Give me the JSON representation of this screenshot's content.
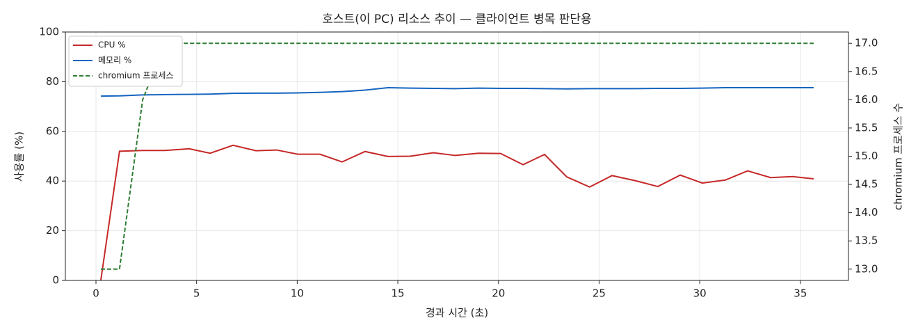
{
  "chart_data": {
    "type": "line",
    "title": "호스트(이 PC) 리소스 추이 — 클라이언트 병목 판단용",
    "x_label": "경과 시간 (초)",
    "y_label": "사용률 (%)",
    "y2_label": "chromium 프로세스 수",
    "x": [
      0.24,
      1.17,
      2.32,
      3.42,
      4.63,
      5.67,
      6.81,
      7.95,
      8.98,
      10.02,
      11.13,
      12.23,
      13.37,
      14.51,
      15.62,
      16.76,
      17.86,
      19.0,
      20.11,
      21.22,
      22.29,
      23.39,
      24.53,
      25.64,
      26.78,
      27.92,
      29.03,
      30.13,
      31.27,
      32.38,
      33.52,
      34.62,
      35.66
    ],
    "series": [
      {
        "name": "CPU %",
        "color": "#c62828",
        "values": [
          0,
          52,
          52.3,
          52.3,
          53,
          51.2,
          54.4,
          52.2,
          52.5,
          50.8,
          50.8,
          47.7,
          51.9,
          49.9,
          50,
          51.4,
          50.3,
          51.2,
          51.1,
          46.6,
          50.7,
          41.7,
          37.6,
          42.2,
          40.2,
          37.8,
          42.4,
          39.2,
          40.4,
          44.1,
          41.4,
          41.8,
          40.9
        ]
      },
      {
        "name": "메모리 %",
        "color": "#1565c0",
        "values": [
          74.2,
          74.3,
          74.7,
          74.8,
          74.9,
          75.0,
          75.3,
          75.4,
          75.4,
          75.5,
          75.7,
          76.0,
          76.6,
          77.6,
          77.4,
          77.3,
          77.2,
          77.4,
          77.3,
          77.3,
          77.2,
          77.1,
          77.2,
          77.2,
          77.2,
          77.3,
          77.3,
          77.4,
          77.6,
          77.6,
          77.6,
          77.6,
          77.6
        ]
      },
      {
        "name": "chromium 프로세스",
        "color": "#2e7d32",
        "linestyle": "dashed",
        "axis": "y2",
        "values": [
          13,
          13,
          16,
          17,
          17,
          17,
          17,
          17,
          17,
          17,
          17,
          17,
          17,
          17,
          17,
          17,
          17,
          17,
          17,
          17,
          17,
          17,
          17,
          17,
          17,
          17,
          17,
          17,
          17,
          17,
          17,
          17,
          17
        ]
      }
    ],
    "xlim": [
      -1.52,
      37.39
    ],
    "xticks": [
      0,
      5,
      10,
      15,
      20,
      25,
      30,
      35
    ],
    "ylim": [
      0,
      100
    ],
    "yticks": [
      0,
      20,
      40,
      60,
      80,
      100
    ],
    "y2lim": [
      12.8,
      17.2
    ],
    "y2ticks": [
      {
        "value": 13,
        "label": "13.0"
      },
      {
        "value": 13.5,
        "label": "13.5"
      },
      {
        "value": 14,
        "label": "14.0"
      },
      {
        "value": 14.5,
        "label": "14.5"
      },
      {
        "value": 15,
        "label": "15.0"
      },
      {
        "value": 15.5,
        "label": "15.5"
      },
      {
        "value": 16,
        "label": "16.0"
      },
      {
        "value": 16.5,
        "label": "16.5"
      },
      {
        "value": 17,
        "label": "17.0"
      }
    ],
    "grid": true,
    "legend": "upper left"
  }
}
